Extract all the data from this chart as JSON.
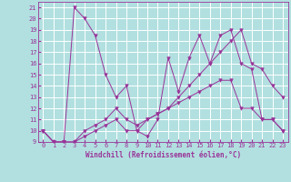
{
  "background_color": "#b2e0e0",
  "grid_color": "#ffffff",
  "line_color": "#993399",
  "xlabel": "Windchill (Refroidissement éolien,°C)",
  "xlim": [
    -0.5,
    23.5
  ],
  "ylim": [
    9,
    21.5
  ],
  "yticks": [
    9,
    10,
    11,
    12,
    13,
    14,
    15,
    16,
    17,
    18,
    19,
    20,
    21
  ],
  "xticks": [
    0,
    1,
    2,
    3,
    4,
    5,
    6,
    7,
    8,
    9,
    10,
    11,
    12,
    13,
    14,
    15,
    16,
    17,
    18,
    19,
    20,
    21,
    22,
    23
  ],
  "line1_x": [
    0,
    1,
    2,
    3,
    4,
    5,
    6,
    7,
    8,
    9,
    10,
    11,
    12,
    13,
    14,
    15,
    16,
    17,
    18,
    19,
    20,
    21,
    22,
    23
  ],
  "line1_y": [
    10,
    9,
    9,
    21,
    20,
    18.5,
    15,
    13,
    14,
    10,
    9.5,
    11,
    16.5,
    13.5,
    16.5,
    18.5,
    16,
    18.5,
    19,
    16,
    15.5,
    11,
    11,
    10
  ],
  "line2_x": [
    0,
    1,
    2,
    3,
    4,
    5,
    6,
    7,
    8,
    9,
    10,
    11,
    12,
    13,
    14,
    15,
    16,
    17,
    18,
    19,
    20,
    21,
    22,
    23
  ],
  "line2_y": [
    10,
    9,
    9,
    9,
    9.5,
    10,
    10.5,
    11,
    10,
    10,
    11,
    11.5,
    12,
    12.5,
    13,
    13.5,
    14,
    14.5,
    14.5,
    12,
    12,
    11,
    11,
    10
  ],
  "line3_x": [
    0,
    1,
    2,
    3,
    4,
    5,
    6,
    7,
    8,
    9,
    10,
    11,
    12,
    13,
    14,
    15,
    16,
    17,
    18,
    19,
    20,
    21,
    22,
    23
  ],
  "line3_y": [
    10,
    9,
    9,
    9,
    10,
    10.5,
    11,
    12,
    11,
    10.5,
    11,
    11.5,
    12,
    13,
    14,
    15,
    16,
    17,
    18,
    19,
    16,
    15.5,
    14,
    13
  ],
  "tick_fontsize": 5,
  "xlabel_fontsize": 5.5
}
